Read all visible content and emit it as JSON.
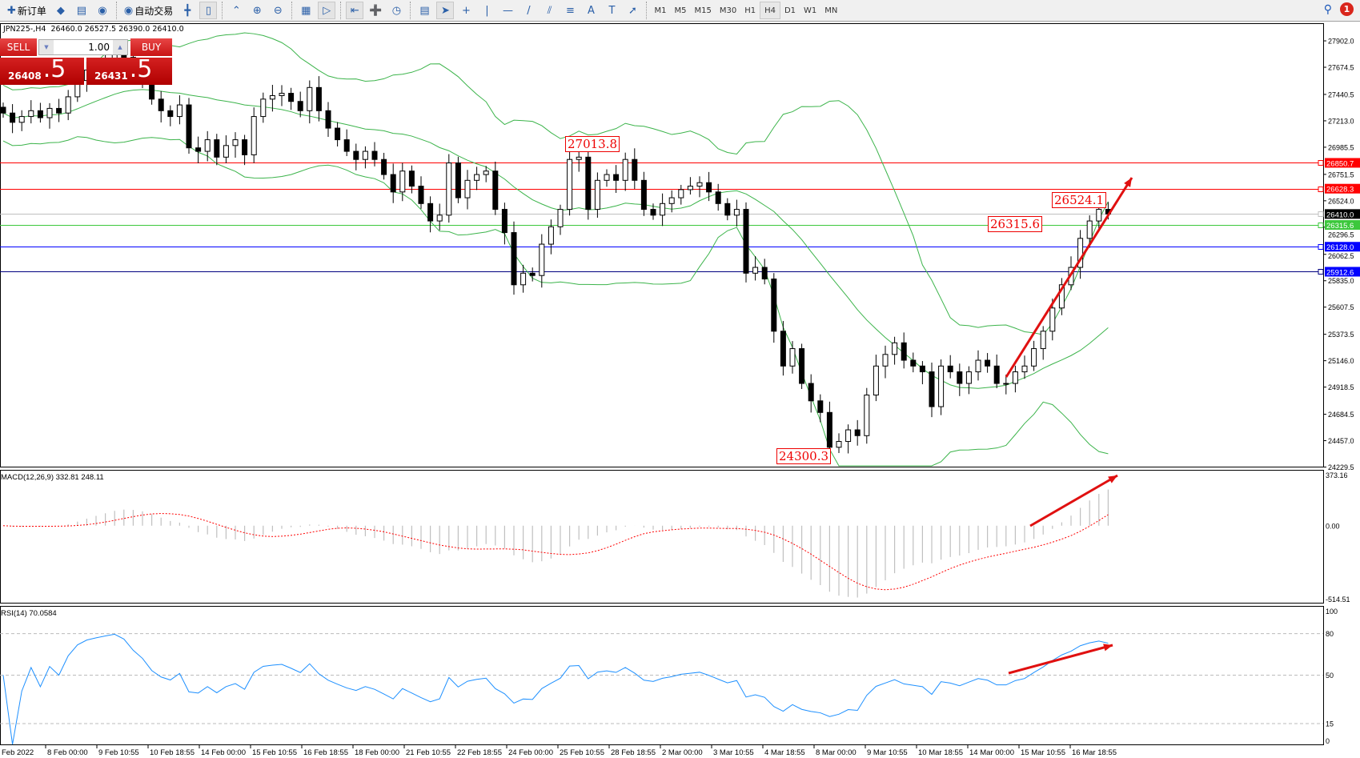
{
  "toolbar": {
    "new_order": "新订单",
    "auto_trading": "自动交易",
    "icons": [
      "new-order-icon",
      "gold-icon",
      "market-watch-icon",
      "signal-icon",
      "auto-trading-icon",
      "bar-chart-icon",
      "candle-chart-icon",
      "line-chart-icon",
      "zoom-in-icon",
      "zoom-out-icon",
      "tile-icon",
      "autoscroll-icon",
      "chart-shift-icon",
      "indicators-icon",
      "periods-icon",
      "templates-icon",
      "cursor-icon",
      "crosshair-icon",
      "vertical-line-icon",
      "horizontal-line-icon",
      "trendline-icon",
      "equidistant-channel-icon",
      "fibonacci-icon",
      "text-icon",
      "text-label-icon",
      "arrows-icon"
    ],
    "timeframes": [
      "M1",
      "M5",
      "M15",
      "M30",
      "H1",
      "H4",
      "D1",
      "W1",
      "MN"
    ],
    "selected_timeframe": "H4",
    "notifications": "1"
  },
  "header": {
    "symbol": "JPN225-,H4",
    "ohlc": "26460.0 26527.5 26390.0 26410.0"
  },
  "trade": {
    "sell": "SELL",
    "buy": "BUY",
    "lot": "1.00",
    "bid_main": "26408",
    "bid_frac": ".5",
    "ask_main": "26431",
    "ask_frac": ".5"
  },
  "annotations": {
    "high": "27013.8",
    "low": "24300.3",
    "recent_high": "26524.1",
    "level": "26315.6"
  },
  "colors": {
    "bullish_band": "#3cb44b",
    "hline_red": "#ff0000",
    "hline_green": "#3cc83c",
    "hline_blue": "#0000ff",
    "rsi": "#1e90ff",
    "macd_signal": "#ff0000",
    "macd_hist": "#c0c0c0",
    "arrow": "#e01010"
  },
  "chart_data": [
    {
      "type": "candlestick",
      "symbol": "JPN225",
      "timeframe": "H4",
      "closes": [
        27280,
        27200,
        27250,
        27300,
        27240,
        27320,
        27280,
        27420,
        27560,
        27650,
        27700,
        27750,
        27800,
        27760,
        27650,
        27560,
        27400,
        27300,
        27250,
        27350,
        26980,
        26950,
        27050,
        26900,
        27000,
        27050,
        26920,
        27250,
        27400,
        27430,
        27450,
        27380,
        27300,
        27500,
        27300,
        27150,
        27050,
        26950,
        26880,
        26950,
        26880,
        26750,
        26600,
        26780,
        26650,
        26500,
        26350,
        26400,
        26850,
        26550,
        26700,
        26750,
        26780,
        26450,
        26250,
        25800,
        25900,
        25880,
        26150,
        26300,
        26450,
        26880,
        26900,
        26450,
        26700,
        26750,
        26700,
        26880,
        26700,
        26450,
        26400,
        26500,
        26550,
        26620,
        26650,
        26680,
        26600,
        26500,
        26400,
        26450,
        25900,
        25950,
        25850,
        25400,
        25100,
        25250,
        24950,
        24800,
        24700,
        24400,
        24450,
        24550,
        24500,
        24850,
        25100,
        25200,
        25300,
        25150,
        25100,
        25050,
        24750,
        25100,
        25050,
        24950,
        25050,
        25150,
        25100,
        24950,
        24950,
        25050,
        25100,
        25250,
        25400,
        25600,
        25800,
        25950,
        26200,
        26350,
        26450,
        26410
      ],
      "indicator": "Bollinger Bands (20,2)",
      "y_axis_ticks": [
        "27902.0",
        "27674.5",
        "27440.5",
        "27213.0",
        "26985.5",
        "26751.5",
        "26524.0",
        "26296.5",
        "26062.5",
        "25835.0",
        "25607.5",
        "25373.5",
        "25146.0",
        "24918.5",
        "24684.5",
        "24457.0",
        "24229.5"
      ],
      "ylim": [
        24233,
        28054
      ],
      "hlines": [
        {
          "price": "26850.7",
          "color": "#ff0000"
        },
        {
          "price": "26628.3",
          "color": "#ff0000"
        },
        {
          "price": "26410.0",
          "color": "#000000",
          "line": "#c0c0c0"
        },
        {
          "price": "26315.6",
          "color": "#3cc83c"
        },
        {
          "price": "26128.0",
          "color": "#0000ff"
        },
        {
          "price": "25912.6",
          "color": "#0000ff",
          "line": "#000080"
        }
      ],
      "x_axis_ticks": [
        "Feb 2022",
        "8 Feb 00:00",
        "9 Feb 10:55",
        "10 Feb 18:55",
        "14 Feb 00:00",
        "15 Feb 10:55",
        "16 Feb 18:55",
        "18 Feb 00:00",
        "21 Feb 10:55",
        "22 Feb 18:55",
        "24 Feb 00:00",
        "25 Feb 10:55",
        "28 Feb 18:55",
        "2 Mar 00:00",
        "3 Mar 10:55",
        "4 Mar 18:55",
        "8 Mar 00:00",
        "9 Mar 10:55",
        "10 Mar 18:55",
        "14 Mar 00:00",
        "15 Mar 10:55",
        "16 Mar 18:55"
      ]
    },
    {
      "type": "bar+line",
      "label": "MACD(12,26,9) 332.81 248.11",
      "y_axis_ticks": [
        "373.16",
        "0.00",
        "-514.51"
      ],
      "ylim": [
        -514.51,
        373.16
      ]
    },
    {
      "type": "line",
      "label": "RSI(14) 70.0584",
      "y_axis_ticks": [
        "100",
        "80",
        "50",
        "15",
        "0"
      ],
      "levels": [
        80,
        50,
        15
      ],
      "ylim": [
        0,
        100
      ]
    }
  ]
}
